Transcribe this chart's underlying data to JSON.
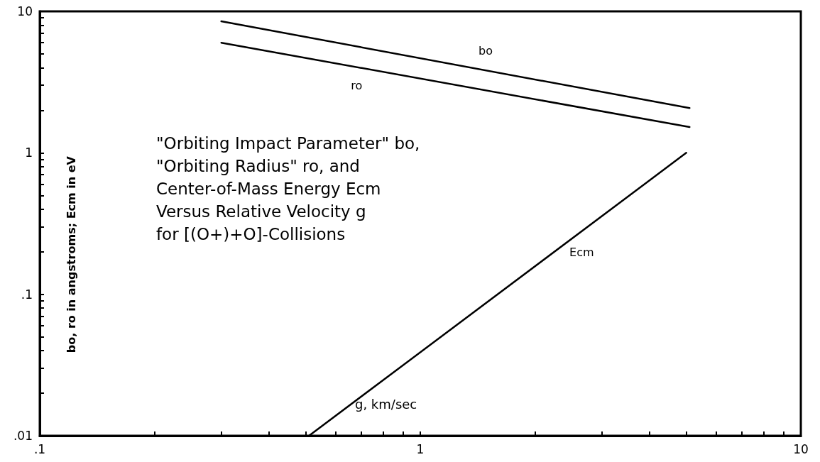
{
  "chart_data": {
    "type": "line",
    "xlabel": "g, km/sec",
    "ylabel": "bo, ro in angstroms; Ecm in eV",
    "annotations": [
      "\"Orbiting Impact Parameter\" bo,\n\"Orbiting Radius\" ro, and\nCenter-of-Mass Energy Ecm\nVersus Relative Velocity g\nfor [(O+)+O]-Collisions"
    ],
    "log": "xy",
    "grid": false,
    "legend": false,
    "marker": "none",
    "line_style": "solid",
    "xlim": [
      0.1,
      10
    ],
    "ylim": [
      0.01,
      10
    ],
    "xticks": [
      {
        "value": 0.1,
        "label": ".1"
      },
      {
        "value": 0.2,
        "label": null
      },
      {
        "value": 0.3,
        "label": null
      },
      {
        "value": 0.4,
        "label": null
      },
      {
        "value": 0.5,
        "label": null
      },
      {
        "value": 0.6,
        "label": null
      },
      {
        "value": 0.7,
        "label": null
      },
      {
        "value": 0.8,
        "label": null
      },
      {
        "value": 0.9,
        "label": null
      },
      1,
      {
        "value": 2,
        "label": null
      },
      {
        "value": 3,
        "label": null
      },
      {
        "value": 4,
        "label": null
      },
      {
        "value": 5,
        "label": null
      },
      {
        "value": 6,
        "label": null
      },
      {
        "value": 7,
        "label": null
      },
      {
        "value": 8,
        "label": null
      },
      {
        "value": 9,
        "label": null
      },
      10
    ],
    "yticks": [
      {
        "value": 0.01,
        "label": ".01"
      },
      {
        "value": 0.02,
        "label": null
      },
      {
        "value": 0.03,
        "label": null
      },
      {
        "value": 0.04,
        "label": null
      },
      {
        "value": 0.05,
        "label": null
      },
      {
        "value": 0.06,
        "label": null
      },
      {
        "value": 0.07,
        "label": null
      },
      {
        "value": 0.08,
        "label": null
      },
      {
        "value": 0.09,
        "label": null
      },
      {
        "value": 0.1,
        "label": ".1"
      },
      {
        "value": 0.2,
        "label": null
      },
      {
        "value": 0.3,
        "label": null
      },
      {
        "value": 0.4,
        "label": null
      },
      {
        "value": 0.5,
        "label": null
      },
      {
        "value": 0.6,
        "label": null
      },
      {
        "value": 0.7,
        "label": null
      },
      {
        "value": 0.8,
        "label": null
      },
      {
        "value": 0.9,
        "label": null
      },
      1,
      {
        "value": 2,
        "label": null
      },
      {
        "value": 3,
        "label": null
      },
      {
        "value": 4,
        "label": null
      },
      {
        "value": 5,
        "label": null
      },
      {
        "value": 6,
        "label": null
      },
      {
        "value": 7,
        "label": null
      },
      {
        "value": 8,
        "label": null
      },
      {
        "value": 9,
        "label": null
      },
      10
    ],
    "series": [
      {
        "name": "bo",
        "color": "#000000",
        "x": [
          0.3,
          5.1
        ],
        "values": [
          8.5,
          2.07
        ]
      },
      {
        "name": "ro",
        "color": "#000000",
        "x": [
          0.3,
          5.1
        ],
        "values": [
          6.0,
          1.52
        ]
      },
      {
        "name": "Ecm",
        "color": "#000000",
        "x": [
          0.51,
          5.0
        ],
        "values": [
          0.01,
          1.0
        ]
      }
    ]
  }
}
